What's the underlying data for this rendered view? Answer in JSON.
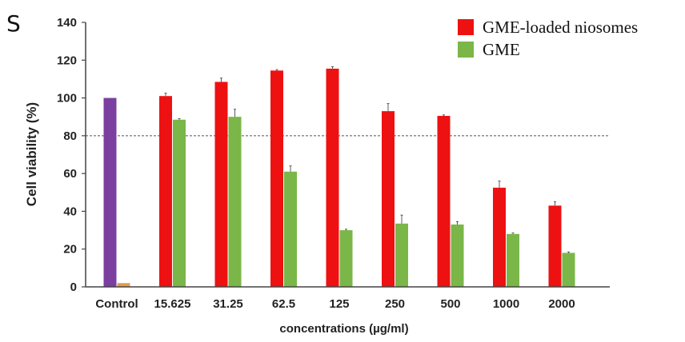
{
  "panel_label": "S",
  "chart_data": {
    "type": "bar",
    "categories": [
      "Control",
      "15.625",
      "31.25",
      "62.5",
      "125",
      "250",
      "500",
      "1000",
      "2000"
    ],
    "series": [
      {
        "name": "GME-loaded niosomes",
        "color": "#ee1111",
        "values": [
          100,
          101,
          108.5,
          114.5,
          115.5,
          93,
          90.5,
          52.5,
          43
        ]
      },
      {
        "name": "GME",
        "color": "#7ab648",
        "values": [
          2,
          88.5,
          90,
          61,
          30,
          33.5,
          33,
          28,
          18
        ]
      }
    ],
    "control_colors": [
      "#7b3fa0",
      "#e59a4e"
    ],
    "errors": [
      [
        0,
        1.5,
        2,
        0.5,
        1,
        4,
        0.5,
        3.5,
        2
      ],
      [
        0,
        0.5,
        4,
        3,
        0.5,
        4.5,
        1.5,
        0.5,
        0.5
      ]
    ],
    "xlabel": "concentrations (µg/ml)",
    "ylabel": "Cell viability (%)",
    "ylim": [
      0,
      140
    ],
    "yticks": [
      0,
      20,
      40,
      60,
      80,
      100,
      120,
      140
    ],
    "reference_line": 80,
    "legend_position": "top-right"
  }
}
